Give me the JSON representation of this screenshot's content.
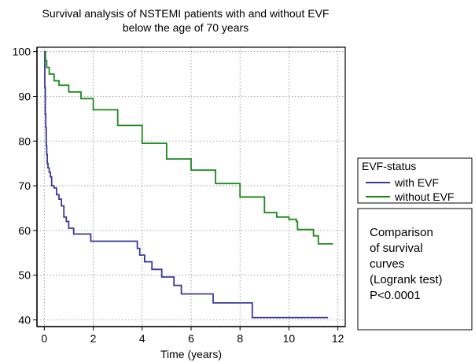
{
  "chart_data": {
    "type": "line",
    "subtype": "kaplan-meier step",
    "title": "Survival analysis of NSTEMI patients with and without EVF",
    "subtitle": "below the age of 70 years",
    "xlabel": "Time (years)",
    "ylabel": "",
    "xlim": [
      -0.3,
      12.3
    ],
    "ylim": [
      38.5,
      101
    ],
    "x_ticks": [
      0,
      2,
      4,
      6,
      8,
      10,
      12
    ],
    "y_ticks": [
      40,
      50,
      60,
      70,
      80,
      90,
      100
    ],
    "grid": true,
    "legend": {
      "title": "EVF-status",
      "placement": "right"
    },
    "annotation": {
      "lines": [
        "Comparison",
        "of survival",
        "curves",
        "(Logrank test)",
        "P<0.0001"
      ],
      "placement": "right"
    },
    "series": [
      {
        "name": "with EVF",
        "color": "#3a3a98",
        "points": [
          [
            0,
            100
          ],
          [
            0.02,
            92
          ],
          [
            0.04,
            86
          ],
          [
            0.06,
            83
          ],
          [
            0.08,
            79
          ],
          [
            0.1,
            77
          ],
          [
            0.12,
            75
          ],
          [
            0.15,
            74
          ],
          [
            0.2,
            73
          ],
          [
            0.25,
            72
          ],
          [
            0.3,
            70
          ],
          [
            0.4,
            69.5
          ],
          [
            0.5,
            68
          ],
          [
            0.6,
            67
          ],
          [
            0.7,
            65.5
          ],
          [
            0.8,
            63
          ],
          [
            0.9,
            62
          ],
          [
            1.0,
            60.5
          ],
          [
            1.2,
            59.2
          ],
          [
            1.9,
            57.6
          ],
          [
            3.8,
            56
          ],
          [
            3.9,
            54.5
          ],
          [
            4.1,
            53
          ],
          [
            4.4,
            51.3
          ],
          [
            4.8,
            49.6
          ],
          [
            5.3,
            47.7
          ],
          [
            5.6,
            45.8
          ],
          [
            6.9,
            43.8
          ],
          [
            8.5,
            40.5
          ],
          [
            11.6,
            40.5
          ]
        ]
      },
      {
        "name": "without EVF",
        "color": "#1e8a1e",
        "points": [
          [
            0,
            100
          ],
          [
            0.05,
            98
          ],
          [
            0.1,
            96.5
          ],
          [
            0.2,
            95
          ],
          [
            0.4,
            93.5
          ],
          [
            0.6,
            92.5
          ],
          [
            1,
            91
          ],
          [
            1.5,
            89.5
          ],
          [
            2,
            87
          ],
          [
            3,
            83.5
          ],
          [
            4,
            79.5
          ],
          [
            5,
            76
          ],
          [
            6,
            73.5
          ],
          [
            7,
            70.5
          ],
          [
            8,
            67.5
          ],
          [
            9,
            64
          ],
          [
            9.5,
            63
          ],
          [
            10,
            62.5
          ],
          [
            10.3,
            62
          ],
          [
            10.35,
            60.2
          ],
          [
            10.8,
            60.2
          ],
          [
            11,
            58.8
          ],
          [
            11.2,
            57
          ],
          [
            11.8,
            57
          ]
        ]
      }
    ]
  }
}
